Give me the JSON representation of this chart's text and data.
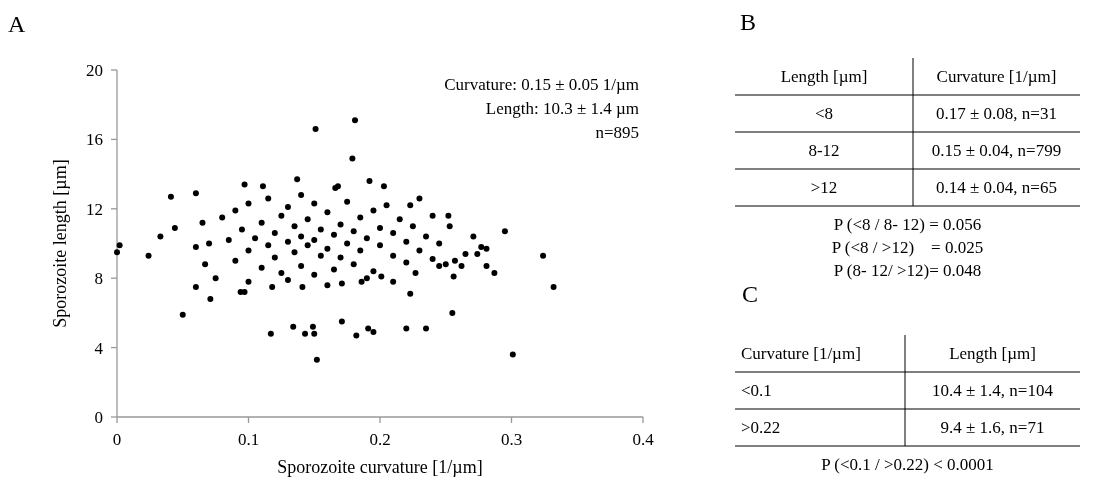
{
  "chart_data": [
    {
      "type": "scatter",
      "title": "A",
      "xlabel": "Sporozoite curvature [1/µm]",
      "ylabel": "Sporozoite length [µm]",
      "xlim": [
        0,
        0.4
      ],
      "xticks": [
        0,
        0.1,
        0.2,
        0.3,
        0.4
      ],
      "ylim": [
        0,
        20
      ],
      "yticks": [
        0,
        4,
        8,
        12,
        16,
        20
      ],
      "marker": "circle",
      "annotations": [
        "Curvature: 0.15 ± 0.05 1/µm",
        "Length: 10.3 ± 1.4 µm",
        "n=895"
      ],
      "series": [
        {
          "color": "#000000",
          "x": [
            0.151,
            0.181,
            0.179,
            0,
            0.002,
            0.024,
            0.033,
            0.041,
            0.044,
            0.06,
            0.05,
            0.071,
            0.06,
            0.067,
            0.094,
            0.097,
            0.118,
            0.117,
            0.134,
            0.143,
            0.15,
            0.149,
            0.141,
            0.171,
            0.182,
            0.152,
            0.137,
            0.097,
            0.111,
            0.168,
            0.192,
            0.203,
            0.166,
            0.23,
            0.223,
            0.252,
            0.253,
            0.271,
            0.295,
            0.324,
            0.332,
            0.281,
            0.277,
            0.274,
            0.265,
            0.281,
            0.287,
            0.257,
            0.262,
            0.256,
            0.255,
            0.223,
            0.191,
            0.195,
            0.22,
            0.235,
            0.301,
            0.245,
            0.227,
            0.201,
            0.186,
            0.171,
            0.08,
            0.085,
            0.09,
            0.09,
            0.095,
            0.1,
            0.1,
            0.105,
            0.11,
            0.11,
            0.115,
            0.115,
            0.12,
            0.12,
            0.125,
            0.125,
            0.13,
            0.13,
            0.135,
            0.135,
            0.14,
            0.14,
            0.14,
            0.145,
            0.145,
            0.15,
            0.15,
            0.15,
            0.155,
            0.155,
            0.16,
            0.16,
            0.165,
            0.165,
            0.17,
            0.17,
            0.175,
            0.175,
            0.18,
            0.18,
            0.185,
            0.185,
            0.19,
            0.195,
            0.195,
            0.2,
            0.2,
            0.205,
            0.21,
            0.21,
            0.215,
            0.22,
            0.22,
            0.225,
            0.23,
            0.235,
            0.24,
            0.24,
            0.245,
            0.25,
            0.07,
            0.075,
            0.065,
            0.06,
            0.1,
            0.13,
            0.16,
            0.19,
            0.21
          ],
          "values": [
            16.6,
            17.1,
            14.9,
            9.5,
            9.9,
            9.3,
            10.4,
            12.7,
            10.9,
            12.9,
            5.9,
            6.8,
            7.5,
            8.8,
            7.2,
            7.2,
            7.5,
            4.8,
            5.2,
            4.8,
            4.8,
            5.2,
            7.5,
            5.5,
            4.7,
            3.3,
            13.7,
            13.4,
            13.3,
            13.3,
            13.6,
            13.3,
            13.2,
            12.6,
            12.2,
            11.6,
            11.0,
            10.4,
            10.7,
            9.3,
            7.5,
            9.7,
            9.8,
            9.4,
            9.4,
            8.7,
            8.3,
            9.0,
            8.7,
            8.1,
            6.0,
            7.1,
            5.1,
            4.9,
            5.1,
            5.1,
            3.6,
            8.7,
            8.3,
            8.1,
            7.8,
            7.7,
            11.5,
            10.2,
            9.0,
            11.9,
            10.8,
            9.6,
            12.3,
            10.3,
            8.6,
            11.2,
            9.9,
            12.6,
            10.6,
            9.2,
            11.6,
            8.3,
            10.1,
            12.1,
            9.5,
            11.0,
            10.4,
            8.7,
            12.8,
            9.9,
            11.4,
            10.2,
            8.2,
            12.3,
            9.3,
            10.8,
            11.8,
            9.7,
            10.5,
            8.5,
            11.1,
            9.2,
            10.0,
            12.4,
            10.7,
            8.8,
            11.5,
            9.6,
            10.3,
            8.4,
            11.9,
            9.9,
            10.9,
            12.2,
            9.3,
            10.6,
            11.4,
            8.9,
            10.1,
            11.0,
            9.6,
            10.4,
            11.6,
            9.1,
            10.0,
            8.8,
            10.0,
            8.0,
            11.2,
            9.8,
            7.8,
            7.9,
            7.6,
            8.0,
            7.8
          ]
        }
      ]
    },
    {
      "type": "other",
      "title": "B",
      "categories": [
        "Length [µm]",
        "Curvature [1/µm]"
      ],
      "cell_labels": [
        [
          "<8",
          "0.17 ± 0.08, n=31"
        ],
        [
          "8-12",
          "0.15 ± 0.04, n=799"
        ],
        [
          ">12",
          "0.14 ± 0.04, n=65"
        ]
      ],
      "annotations": [
        "P (<8 / 8- 12) = 0.056",
        "P (<8 / >12)    = 0.025",
        "P (8- 12/ >12)= 0.048"
      ]
    },
    {
      "type": "other",
      "title": "C",
      "categories": [
        "Curvature [1/µm]",
        "Length [µm]"
      ],
      "cell_labels": [
        [
          "<0.1",
          "10.4 ± 1.4, n=104"
        ],
        [
          ">0.22",
          "9.4 ± 1.6, n=71"
        ]
      ],
      "annotations": [
        "P (<0.1 / >0.22) < 0.0001"
      ]
    }
  ]
}
